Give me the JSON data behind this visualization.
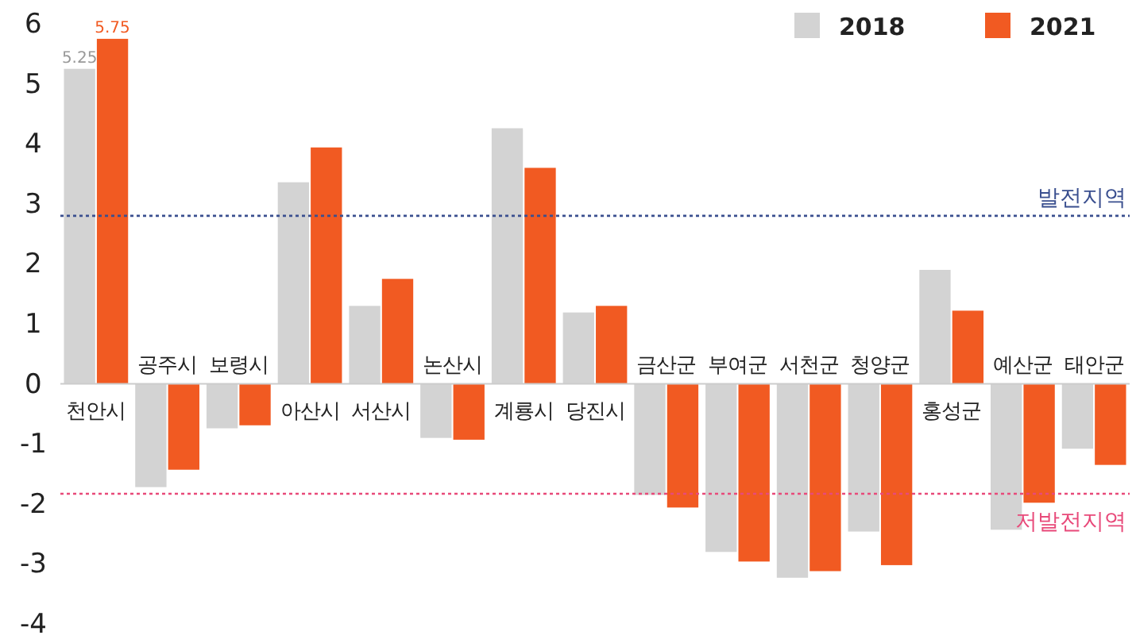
{
  "chart_data": {
    "type": "bar",
    "categories": [
      "천안시",
      "공주시",
      "보령시",
      "아산시",
      "서산시",
      "논산시",
      "계룡시",
      "당진시",
      "금산군",
      "부여군",
      "서천군",
      "청양군",
      "홍성군",
      "예산군",
      "태안군"
    ],
    "series": [
      {
        "name": "2018",
        "color": "#d3d3d3",
        "values": [
          5.25,
          -1.72,
          -0.74,
          3.36,
          1.3,
          -0.9,
          4.26,
          1.19,
          -1.85,
          -2.8,
          -3.23,
          -2.46,
          1.9,
          -2.43,
          -1.08
        ],
        "value_labels": [
          "5.25",
          null,
          null,
          null,
          null,
          null,
          null,
          null,
          null,
          null,
          null,
          null,
          null,
          null,
          null
        ]
      },
      {
        "name": "2021",
        "color": "#f15a22",
        "values": [
          5.75,
          -1.43,
          -0.69,
          3.94,
          1.75,
          -0.93,
          3.6,
          1.3,
          -2.06,
          -2.96,
          -3.12,
          -3.02,
          1.22,
          -1.98,
          -1.35
        ],
        "value_labels": [
          "5.75",
          null,
          null,
          null,
          null,
          null,
          null,
          null,
          null,
          null,
          null,
          null,
          null,
          null,
          null
        ]
      }
    ],
    "ylim": [
      -4,
      6
    ],
    "yticks": [
      -4,
      -3,
      -2,
      -1,
      0,
      1,
      2,
      3,
      4,
      5,
      6
    ],
    "ref_lines": [
      {
        "axis": "y",
        "value": 2.8,
        "label": "발전지역",
        "color": "#3a4f8f",
        "line_style": "dotted"
      },
      {
        "axis": "y",
        "value": -1.83,
        "label": "저발전지역",
        "color": "#e84a7a",
        "line_style": "dotted"
      }
    ],
    "legend": "top right",
    "grid": false
  }
}
